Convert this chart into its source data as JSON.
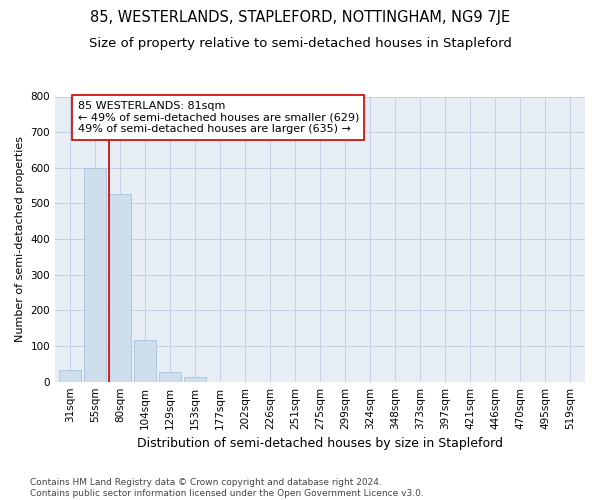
{
  "title": "85, WESTERLANDS, STAPLEFORD, NOTTINGHAM, NG9 7JE",
  "subtitle": "Size of property relative to semi-detached houses in Stapleford",
  "xlabel": "Distribution of semi-detached houses by size in Stapleford",
  "ylabel": "Number of semi-detached properties",
  "bar_color": "#cfdeed",
  "bar_edge_color": "#a8c4de",
  "categories": [
    "31sqm",
    "55sqm",
    "80sqm",
    "104sqm",
    "129sqm",
    "153sqm",
    "177sqm",
    "202sqm",
    "226sqm",
    "251sqm",
    "275sqm",
    "299sqm",
    "324sqm",
    "348sqm",
    "373sqm",
    "397sqm",
    "421sqm",
    "446sqm",
    "470sqm",
    "495sqm",
    "519sqm"
  ],
  "values": [
    33,
    600,
    527,
    117,
    27,
    12,
    0,
    0,
    0,
    0,
    0,
    0,
    0,
    0,
    0,
    0,
    0,
    0,
    0,
    0,
    0
  ],
  "ylim": [
    0,
    800
  ],
  "yticks": [
    0,
    100,
    200,
    300,
    400,
    500,
    600,
    700,
    800
  ],
  "property_label": "85 WESTERLANDS: 81sqm",
  "pct_smaller": 49,
  "pct_larger": 49,
  "n_smaller": 629,
  "n_larger": 635,
  "vline_bar_index": 2,
  "vline_color": "#cc0000",
  "annotation_box_color": "#ffffff",
  "annotation_box_edge": "#cc0000",
  "background_color": "#ffffff",
  "plot_bg_color": "#e8eef5",
  "grid_color": "#c5d0e0",
  "footnote": "Contains HM Land Registry data © Crown copyright and database right 2024.\nContains public sector information licensed under the Open Government Licence v3.0.",
  "title_fontsize": 10.5,
  "subtitle_fontsize": 9.5,
  "xlabel_fontsize": 9,
  "ylabel_fontsize": 8,
  "tick_fontsize": 7.5,
  "annotation_fontsize": 8,
  "footnote_fontsize": 6.5
}
